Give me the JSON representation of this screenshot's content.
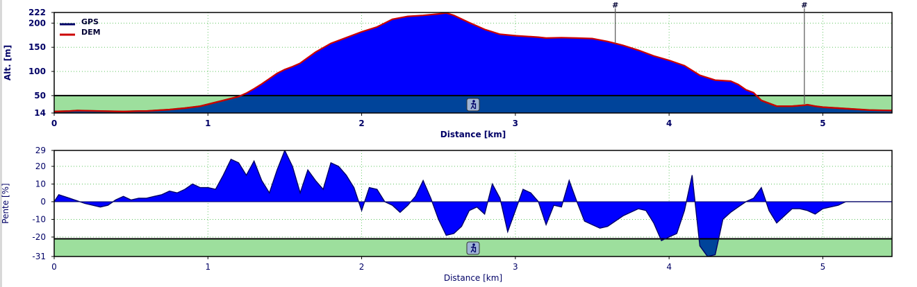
{
  "chart_data": [
    {
      "type": "area",
      "xlabel": "Distance [km]",
      "ylabel": "Alt. [m]",
      "xlim": [
        0,
        5.45
      ],
      "ylim": [
        14,
        222
      ],
      "x_ticks": [
        "0",
        "1",
        "2",
        "3",
        "4",
        "5"
      ],
      "y_ticks": [
        "14",
        "50",
        "100",
        "150",
        "200",
        "222"
      ],
      "threshold": 50,
      "grid": true,
      "legend_position": "top-left",
      "colors": {
        "fill": "#0000ff",
        "dem": "#cc0000",
        "gps": "#000066",
        "band": "#9ddf9d",
        "band_fill": "#00449a"
      },
      "series": [
        {
          "name": "GPS",
          "color": "#000066"
        },
        {
          "name": "DEM",
          "color": "#cc0000"
        }
      ],
      "x": [
        0,
        0.1,
        0.15,
        0.3,
        0.45,
        0.55,
        0.6,
        0.65,
        0.75,
        0.85,
        0.9,
        0.95,
        1.0,
        1.05,
        1.1,
        1.15,
        1.2,
        1.25,
        1.3,
        1.35,
        1.4,
        1.45,
        1.5,
        1.55,
        1.6,
        1.7,
        1.8,
        1.9,
        2.0,
        2.1,
        2.15,
        2.2,
        2.3,
        2.4,
        2.5,
        2.55,
        2.6,
        2.7,
        2.8,
        2.9,
        3.0,
        3.1,
        3.15,
        3.2,
        3.3,
        3.4,
        3.5,
        3.6,
        3.65,
        3.7,
        3.8,
        3.9,
        4.0,
        4.1,
        4.2,
        4.3,
        4.4,
        4.45,
        4.5,
        4.55,
        4.6,
        4.7,
        4.8,
        4.88,
        4.9,
        4.95,
        5.0,
        5.1,
        5.2,
        5.3,
        5.45
      ],
      "y": [
        17,
        18,
        19,
        18,
        17,
        18,
        18,
        19,
        21,
        24,
        26,
        28,
        32,
        36,
        40,
        44,
        48,
        55,
        64,
        74,
        85,
        96,
        104,
        110,
        117,
        140,
        158,
        170,
        182,
        192,
        200,
        208,
        214,
        216,
        219,
        221,
        216,
        201,
        187,
        177,
        174,
        172,
        171,
        169,
        170,
        169,
        168,
        162,
        158,
        154,
        144,
        132,
        123,
        112,
        92,
        82,
        80,
        73,
        62,
        56,
        40,
        28,
        28,
        30,
        31,
        28,
        26,
        24,
        22,
        20,
        19
      ],
      "markers": [
        {
          "x": 3.65,
          "label": "#"
        },
        {
          "x": 4.88,
          "label": "#"
        }
      ]
    },
    {
      "type": "area",
      "xlabel": "Distance [km]",
      "ylabel": "Pente [%]",
      "xlim": [
        0,
        5.45
      ],
      "ylim": [
        -31,
        29
      ],
      "x_ticks": [
        "0",
        "1",
        "2",
        "3",
        "4",
        "5"
      ],
      "y_ticks": [
        "29",
        "20",
        "10",
        "0",
        "-10",
        "-20",
        "-31"
      ],
      "threshold": -21,
      "grid": true,
      "x": [
        0,
        0.03,
        0.1,
        0.2,
        0.3,
        0.35,
        0.4,
        0.45,
        0.5,
        0.55,
        0.6,
        0.65,
        0.7,
        0.75,
        0.8,
        0.85,
        0.9,
        0.95,
        1.0,
        1.05,
        1.1,
        1.15,
        1.2,
        1.25,
        1.3,
        1.35,
        1.4,
        1.45,
        1.5,
        1.55,
        1.6,
        1.65,
        1.7,
        1.75,
        1.8,
        1.85,
        1.9,
        1.95,
        2.0,
        2.05,
        2.1,
        2.15,
        2.2,
        2.25,
        2.3,
        2.35,
        2.4,
        2.45,
        2.5,
        2.55,
        2.6,
        2.65,
        2.7,
        2.75,
        2.8,
        2.85,
        2.9,
        2.95,
        3.0,
        3.05,
        3.1,
        3.15,
        3.2,
        3.25,
        3.3,
        3.35,
        3.4,
        3.45,
        3.5,
        3.55,
        3.6,
        3.65,
        3.7,
        3.75,
        3.8,
        3.85,
        3.9,
        3.95,
        4.0,
        4.05,
        4.1,
        4.15,
        4.2,
        4.25,
        4.3,
        4.35,
        4.4,
        4.45,
        4.5,
        4.55,
        4.6,
        4.65,
        4.7,
        4.75,
        4.8,
        4.85,
        4.9,
        4.95,
        5.0,
        5.05,
        5.1,
        5.15,
        5.2,
        5.25,
        5.3,
        5.35,
        5.4,
        5.45
      ],
      "y": [
        0,
        4,
        2,
        -1,
        -3,
        -2,
        1,
        3,
        1,
        2,
        2,
        3,
        4,
        6,
        5,
        7,
        10,
        8,
        8,
        7,
        15,
        24,
        22,
        15,
        23,
        12,
        5,
        18,
        29,
        20,
        5,
        18,
        12,
        7,
        22,
        20,
        15,
        8,
        -5,
        8,
        7,
        0,
        -2,
        -6,
        -2,
        3,
        12,
        2,
        -10,
        -19,
        -18,
        -14,
        -5,
        -3,
        -7,
        10,
        2,
        -17,
        -5,
        7,
        5,
        0,
        -13,
        -2,
        -3,
        12,
        0,
        -11,
        -13,
        -15,
        -14,
        -11,
        -8,
        -6,
        -4,
        -5,
        -12,
        -22,
        -20,
        -18,
        -5,
        15,
        -25,
        -31,
        -30,
        -10,
        -6,
        -3,
        0,
        2,
        8,
        -5,
        -12,
        -8,
        -4,
        -4,
        -5,
        -7,
        -4,
        -3,
        -2,
        0,
        0,
        0,
        0,
        0,
        0,
        0
      ]
    }
  ]
}
